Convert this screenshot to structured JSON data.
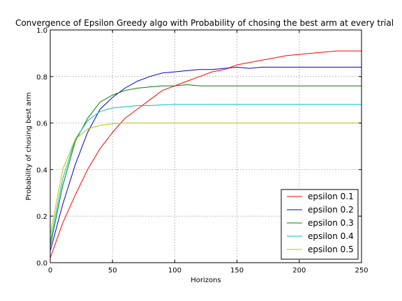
{
  "chart_data": {
    "type": "line",
    "title": "Convergence of Epsilon Greedy algo with Probability of chosing the best arm at every trial",
    "xlabel": "Horizons",
    "ylabel": "Probability of chosing best arm",
    "xlim": [
      0,
      250
    ],
    "ylim": [
      0.0,
      1.0
    ],
    "xticks": [
      "0",
      "50",
      "100",
      "150",
      "200",
      "250"
    ],
    "yticks": [
      "0.0",
      "0.2",
      "0.4",
      "0.6",
      "0.8",
      "1.0"
    ],
    "grid": true,
    "legend_position": "lower-right",
    "series": [
      {
        "name": "epsilon 0.1",
        "color": "#ff0000",
        "points": [
          [
            0,
            0.02
          ],
          [
            10,
            0.17
          ],
          [
            20,
            0.29
          ],
          [
            30,
            0.4
          ],
          [
            40,
            0.49
          ],
          [
            50,
            0.56
          ],
          [
            60,
            0.62
          ],
          [
            70,
            0.66
          ],
          [
            80,
            0.7
          ],
          [
            90,
            0.74
          ],
          [
            100,
            0.76
          ],
          [
            110,
            0.78
          ],
          [
            120,
            0.8
          ],
          [
            130,
            0.82
          ],
          [
            140,
            0.83
          ],
          [
            150,
            0.85
          ],
          [
            160,
            0.86
          ],
          [
            170,
            0.87
          ],
          [
            180,
            0.88
          ],
          [
            190,
            0.89
          ],
          [
            200,
            0.895
          ],
          [
            210,
            0.9
          ],
          [
            220,
            0.905
          ],
          [
            230,
            0.91
          ],
          [
            240,
            0.91
          ],
          [
            250,
            0.91
          ]
        ]
      },
      {
        "name": "epsilon 0.2",
        "color": "#0000cc",
        "points": [
          [
            0,
            0.05
          ],
          [
            10,
            0.25
          ],
          [
            20,
            0.42
          ],
          [
            30,
            0.56
          ],
          [
            40,
            0.66
          ],
          [
            50,
            0.71
          ],
          [
            60,
            0.75
          ],
          [
            70,
            0.78
          ],
          [
            80,
            0.8
          ],
          [
            90,
            0.815
          ],
          [
            100,
            0.82
          ],
          [
            110,
            0.825
          ],
          [
            120,
            0.83
          ],
          [
            130,
            0.83
          ],
          [
            140,
            0.835
          ],
          [
            150,
            0.84
          ],
          [
            160,
            0.835
          ],
          [
            170,
            0.84
          ],
          [
            180,
            0.84
          ],
          [
            190,
            0.84
          ],
          [
            200,
            0.84
          ],
          [
            210,
            0.84
          ],
          [
            220,
            0.84
          ],
          [
            230,
            0.84
          ],
          [
            240,
            0.84
          ],
          [
            250,
            0.84
          ]
        ]
      },
      {
        "name": "epsilon 0.3",
        "color": "#008000",
        "points": [
          [
            0,
            0.07
          ],
          [
            10,
            0.33
          ],
          [
            20,
            0.52
          ],
          [
            30,
            0.62
          ],
          [
            40,
            0.69
          ],
          [
            50,
            0.72
          ],
          [
            60,
            0.74
          ],
          [
            70,
            0.75
          ],
          [
            80,
            0.755
          ],
          [
            90,
            0.76
          ],
          [
            100,
            0.76
          ],
          [
            110,
            0.765
          ],
          [
            120,
            0.76
          ],
          [
            130,
            0.76
          ],
          [
            140,
            0.76
          ],
          [
            150,
            0.76
          ],
          [
            160,
            0.76
          ],
          [
            170,
            0.76
          ],
          [
            180,
            0.76
          ],
          [
            190,
            0.76
          ],
          [
            200,
            0.76
          ],
          [
            210,
            0.76
          ],
          [
            220,
            0.76
          ],
          [
            230,
            0.76
          ],
          [
            240,
            0.76
          ],
          [
            250,
            0.76
          ]
        ]
      },
      {
        "name": "epsilon 0.4",
        "color": "#00bfbf",
        "points": [
          [
            0,
            0.09
          ],
          [
            10,
            0.36
          ],
          [
            20,
            0.53
          ],
          [
            30,
            0.61
          ],
          [
            40,
            0.65
          ],
          [
            50,
            0.665
          ],
          [
            60,
            0.67
          ],
          [
            70,
            0.675
          ],
          [
            80,
            0.675
          ],
          [
            90,
            0.678
          ],
          [
            100,
            0.68
          ],
          [
            110,
            0.68
          ],
          [
            120,
            0.68
          ],
          [
            130,
            0.68
          ],
          [
            140,
            0.68
          ],
          [
            150,
            0.68
          ],
          [
            160,
            0.68
          ],
          [
            170,
            0.68
          ],
          [
            180,
            0.68
          ],
          [
            190,
            0.68
          ],
          [
            200,
            0.68
          ],
          [
            210,
            0.68
          ],
          [
            220,
            0.68
          ],
          [
            230,
            0.68
          ],
          [
            240,
            0.68
          ],
          [
            250,
            0.68
          ]
        ]
      },
      {
        "name": "epsilon 0.5",
        "color": "#bfbf00",
        "points": [
          [
            0,
            0.12
          ],
          [
            10,
            0.4
          ],
          [
            20,
            0.53
          ],
          [
            30,
            0.575
          ],
          [
            40,
            0.59
          ],
          [
            50,
            0.597
          ],
          [
            60,
            0.6
          ],
          [
            70,
            0.6
          ],
          [
            80,
            0.6
          ],
          [
            90,
            0.6
          ],
          [
            100,
            0.6
          ],
          [
            110,
            0.6
          ],
          [
            120,
            0.6
          ],
          [
            130,
            0.6
          ],
          [
            140,
            0.6
          ],
          [
            150,
            0.6
          ],
          [
            160,
            0.6
          ],
          [
            170,
            0.6
          ],
          [
            180,
            0.6
          ],
          [
            190,
            0.6
          ],
          [
            200,
            0.6
          ],
          [
            210,
            0.6
          ],
          [
            220,
            0.6
          ],
          [
            230,
            0.6
          ],
          [
            240,
            0.6
          ],
          [
            250,
            0.6
          ]
        ]
      }
    ]
  }
}
